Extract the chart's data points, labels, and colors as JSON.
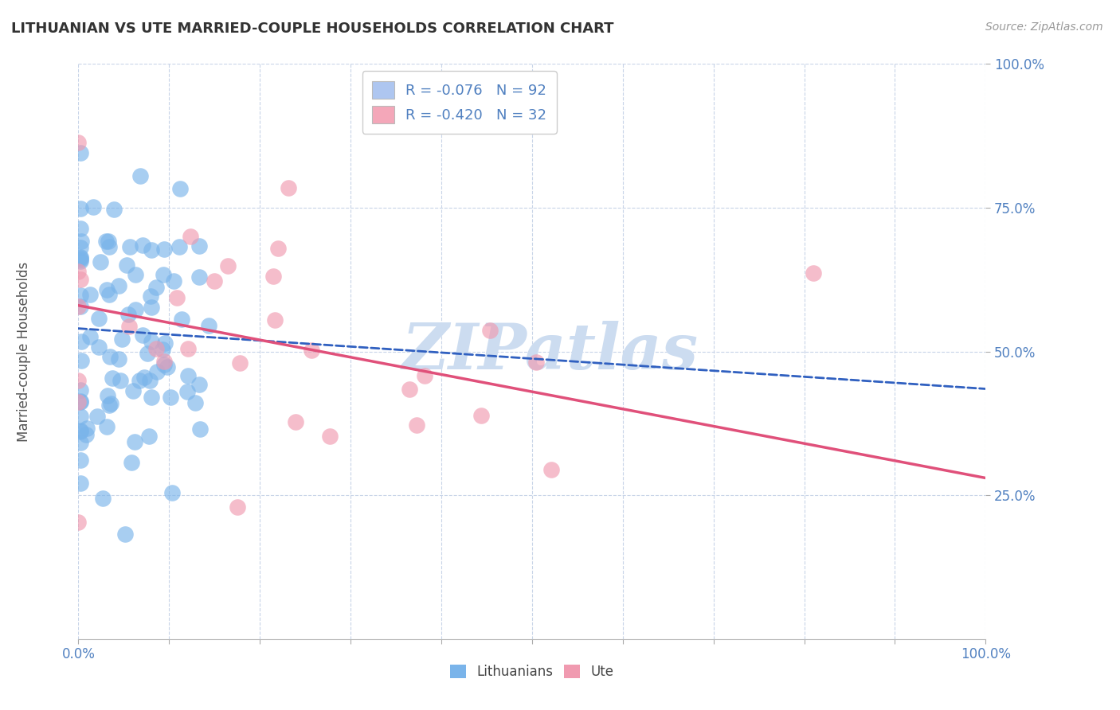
{
  "title": "LITHUANIAN VS UTE MARRIED-COUPLE HOUSEHOLDS CORRELATION CHART",
  "source_text": "Source: ZipAtlas.com",
  "ylabel": "Married-couple Households",
  "xlim": [
    0,
    100
  ],
  "ylim": [
    0,
    100
  ],
  "ytick_positions": [
    25,
    50,
    75,
    100
  ],
  "ytick_labels": [
    "25.0%",
    "50.0%",
    "75.0%",
    "100.0%"
  ],
  "xtick_positions": [
    0,
    10,
    20,
    30,
    40,
    50,
    60,
    70,
    80,
    90,
    100
  ],
  "xtick_labeled": [
    0,
    100
  ],
  "xtick_labels_shown": [
    "0.0%",
    "100.0%"
  ],
  "legend_labels": [
    "R = -0.076   N = 92",
    "R = -0.420   N = 32"
  ],
  "legend_patch_blue": "#aec6f0",
  "legend_patch_pink": "#f4a7b9",
  "blue_dot_color": "#7ab4ea",
  "pink_dot_color": "#f09ab0",
  "blue_line_color": "#3060c0",
  "pink_line_color": "#e0507a",
  "watermark_text": "ZIPatlas",
  "watermark_color": "#ccdcf0",
  "grid_color": "#c8d4e8",
  "axis_label_color": "#5080c0",
  "background_color": "#ffffff",
  "title_color": "#333333",
  "source_color": "#999999",
  "ylabel_color": "#555555",
  "bottom_legend_color": "#444444",
  "R_blue": -0.076,
  "N_blue": 92,
  "R_pink": -0.42,
  "N_pink": 32,
  "seed_blue": 7,
  "seed_pink": 17,
  "blue_x_mean": 5.0,
  "blue_x_std": 5.0,
  "blue_y_mean": 53,
  "blue_y_std": 14,
  "pink_x_mean": 20.0,
  "pink_x_std": 22.0,
  "pink_y_mean": 52,
  "pink_y_std": 14,
  "blue_intercept": 54,
  "blue_slope": -0.105,
  "pink_intercept": 58,
  "pink_slope": -0.3
}
